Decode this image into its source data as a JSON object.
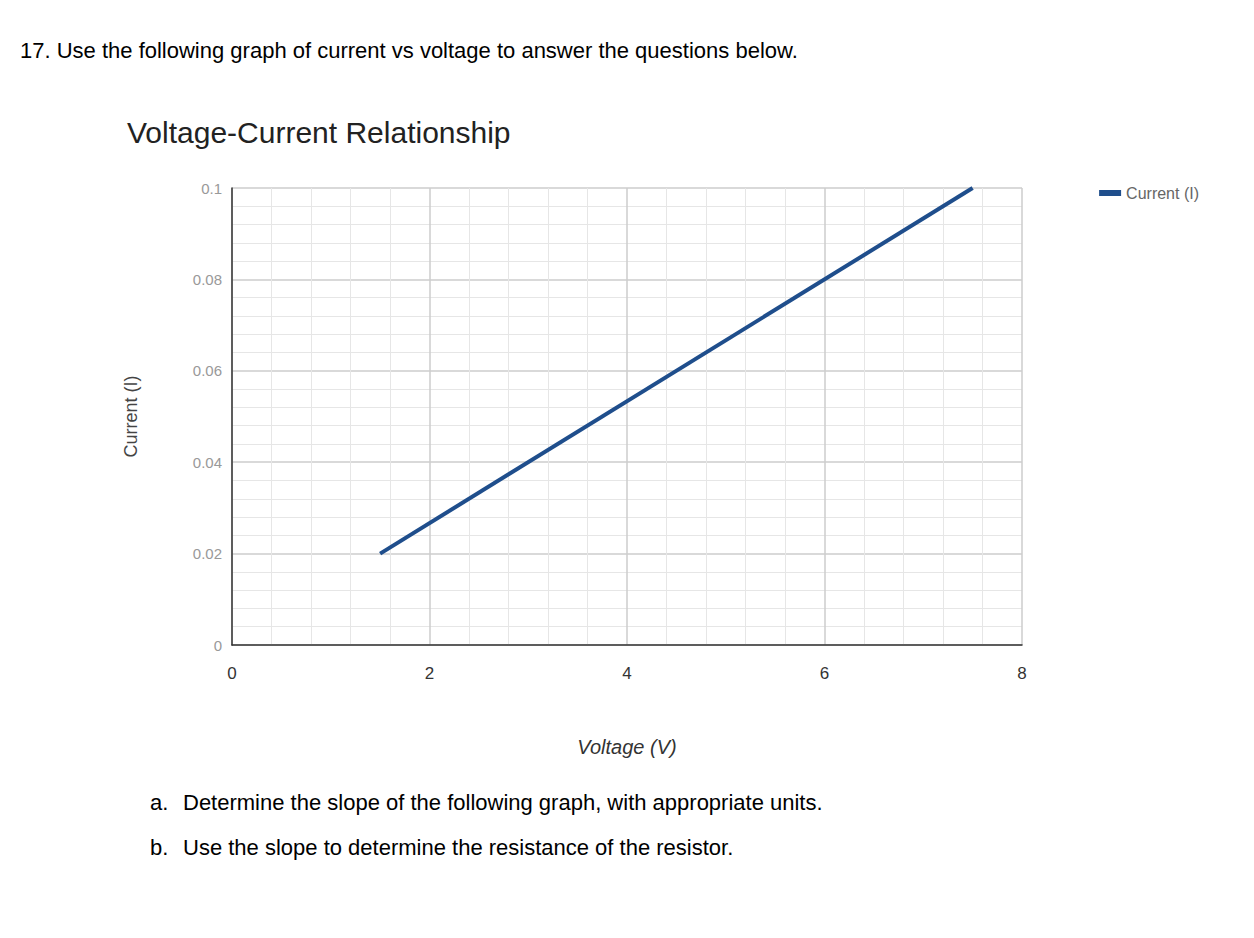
{
  "header": "17. Use the following graph of current vs voltage to answer the questions below.",
  "chart_data": {
    "type": "line",
    "title": "Voltage-Current Relationship",
    "x_label": "Voltage (V)",
    "y_label": "Current (I)",
    "x": [
      1.5,
      7.5
    ],
    "series": [
      {
        "name": "Current (I)",
        "color": "#1f4e8c",
        "values": [
          0.02,
          0.1
        ]
      }
    ],
    "xlim": [
      0,
      8
    ],
    "xticks": [
      0,
      2,
      4,
      6,
      8
    ],
    "ylim": [
      0,
      0.1
    ],
    "yticks": [
      0,
      0.02,
      0.04,
      0.06,
      0.08,
      0.1
    ],
    "grid": true,
    "legend": "top-right"
  },
  "questions": [
    {
      "label": "a.",
      "text": "Determine the slope of the following graph, with appropriate units."
    },
    {
      "label": "b.",
      "text": "Use the slope to determine the resistance of the resistor."
    }
  ]
}
